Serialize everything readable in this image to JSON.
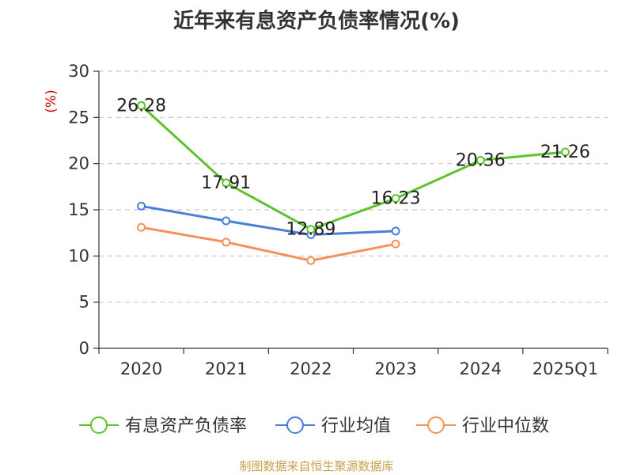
{
  "chart_data": {
    "type": "line",
    "title": "近年来有息资产负债率情况(%)",
    "ylabel": "(%)",
    "xlabel": "",
    "categories": [
      "2020",
      "2021",
      "2022",
      "2023",
      "2024",
      "2025Q1"
    ],
    "ylim": [
      0,
      30
    ],
    "yticks": [
      0,
      5,
      10,
      15,
      20,
      25,
      30
    ],
    "grid": true,
    "legend_position": "bottom",
    "series": [
      {
        "name": "有息资产负债率",
        "color": "#5cc42a",
        "values": [
          26.28,
          17.91,
          12.89,
          16.23,
          20.36,
          21.26
        ],
        "labels": [
          "26.28",
          "17.91",
          "12.89",
          "16.23",
          "20.36",
          "21.26"
        ]
      },
      {
        "name": "行业均值",
        "color": "#4a7fd8",
        "values": [
          15.4,
          13.8,
          12.3,
          12.7,
          null,
          null
        ]
      },
      {
        "name": "行业中位数",
        "color": "#f5905a",
        "values": [
          13.1,
          11.5,
          9.5,
          11.3,
          null,
          null
        ]
      }
    ]
  },
  "source": "制图数据来自恒生聚源数据库"
}
